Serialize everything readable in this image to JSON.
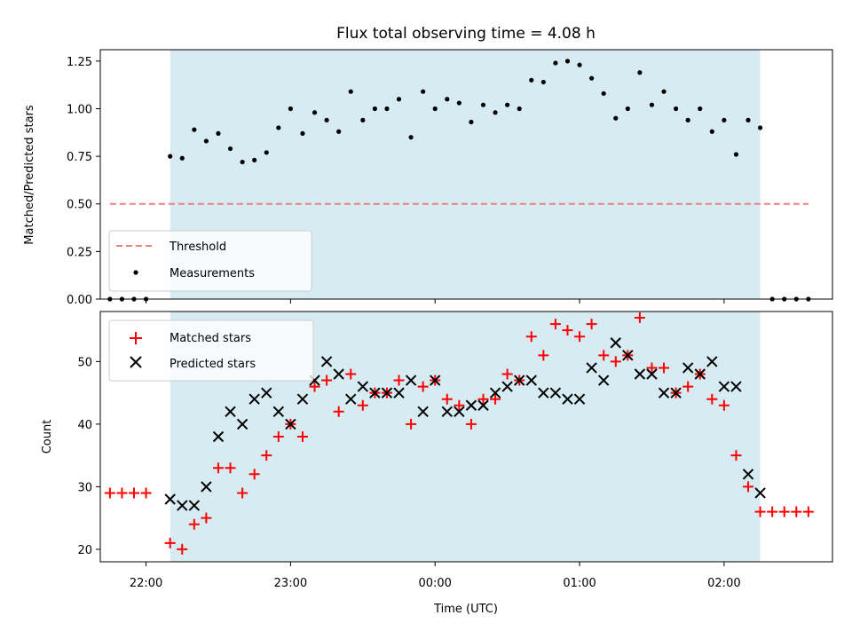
{
  "chart_data": [
    {
      "type": "scatter",
      "title": "Flux total observing time = 4.08 h",
      "xlabel": "",
      "ylabel": "Matched/Predicted stars",
      "ylim": [
        0,
        1.31
      ],
      "yticks": [
        "0.00",
        "0.25",
        "0.50",
        "0.75",
        "1.00",
        "1.25"
      ],
      "xlim": [
        "21:41",
        "02:45"
      ],
      "observing_window": [
        "22:10",
        "02:15"
      ],
      "grid": false,
      "legend_position": "lower-left",
      "threshold": {
        "name": "Threshold",
        "value": 0.5,
        "x": [
          "21:45",
          "02:35"
        ],
        "color": "#f08080"
      },
      "series": [
        {
          "name": "Measurements",
          "color": "#000000",
          "x": [
            "21:45",
            "21:50",
            "21:55",
            "22:00",
            "22:10",
            "22:15",
            "22:20",
            "22:25",
            "22:30",
            "22:35",
            "22:40",
            "22:45",
            "22:50",
            "22:55",
            "23:00",
            "23:05",
            "23:10",
            "23:15",
            "23:20",
            "23:25",
            "23:30",
            "23:35",
            "23:40",
            "23:45",
            "23:50",
            "23:55",
            "00:00",
            "00:05",
            "00:10",
            "00:15",
            "00:20",
            "00:25",
            "00:30",
            "00:35",
            "00:40",
            "00:45",
            "00:50",
            "00:55",
            "01:00",
            "01:05",
            "01:10",
            "01:15",
            "01:20",
            "01:25",
            "01:30",
            "01:35",
            "01:40",
            "01:45",
            "01:50",
            "01:55",
            "02:00",
            "02:05",
            "02:10",
            "02:15",
            "02:20",
            "02:25",
            "02:30",
            "02:35"
          ],
          "y": [
            0,
            0,
            0,
            0,
            0.75,
            0.74,
            0.89,
            0.83,
            0.87,
            0.79,
            0.72,
            0.73,
            0.77,
            0.9,
            1.0,
            0.87,
            0.98,
            0.94,
            0.88,
            1.09,
            0.94,
            1.0,
            1.0,
            1.05,
            0.85,
            1.09,
            1.0,
            1.05,
            1.03,
            0.93,
            1.02,
            0.98,
            1.02,
            1.0,
            1.15,
            1.14,
            1.24,
            1.25,
            1.23,
            1.16,
            1.08,
            0.95,
            1.0,
            1.19,
            1.02,
            1.09,
            1.0,
            0.94,
            1.0,
            0.88,
            0.94,
            0.76,
            0.94,
            0.9,
            0,
            0,
            0,
            0
          ]
        }
      ]
    },
    {
      "type": "scatter",
      "title": "",
      "xlabel": "Time (UTC)",
      "ylabel": "Count",
      "ylim": [
        18,
        58
      ],
      "yticks": [
        20,
        30,
        40,
        50
      ],
      "xlim": [
        "21:41",
        "02:45"
      ],
      "xticks": [
        "22:00",
        "23:00",
        "00:00",
        "01:00",
        "02:00"
      ],
      "observing_window": [
        "22:10",
        "02:15"
      ],
      "grid": false,
      "legend_position": "upper-left",
      "series": [
        {
          "name": "Matched stars",
          "marker": "plus",
          "color": "#ff0000",
          "x": [
            "21:45",
            "21:50",
            "21:55",
            "22:00",
            "22:10",
            "22:15",
            "22:20",
            "22:25",
            "22:30",
            "22:35",
            "22:40",
            "22:45",
            "22:50",
            "22:55",
            "23:00",
            "23:05",
            "23:10",
            "23:15",
            "23:20",
            "23:25",
            "23:30",
            "23:35",
            "23:40",
            "23:45",
            "23:50",
            "23:55",
            "00:00",
            "00:05",
            "00:10",
            "00:15",
            "00:20",
            "00:25",
            "00:30",
            "00:35",
            "00:40",
            "00:45",
            "00:50",
            "00:55",
            "01:00",
            "01:05",
            "01:10",
            "01:15",
            "01:20",
            "01:25",
            "01:30",
            "01:35",
            "01:40",
            "01:45",
            "01:50",
            "01:55",
            "02:00",
            "02:05",
            "02:10",
            "02:15",
            "02:20",
            "02:25",
            "02:30",
            "02:35"
          ],
          "y": [
            29,
            29,
            29,
            29,
            21,
            20,
            24,
            25,
            33,
            33,
            29,
            32,
            35,
            38,
            40,
            38,
            46,
            47,
            42,
            48,
            43,
            45,
            45,
            47,
            40,
            46,
            47,
            44,
            43,
            40,
            44,
            44,
            48,
            47,
            54,
            51,
            56,
            55,
            54,
            56,
            51,
            50,
            51,
            57,
            49,
            49,
            45,
            46,
            48,
            44,
            43,
            35,
            30,
            26,
            26,
            26,
            26,
            26
          ]
        },
        {
          "name": "Predicted stars",
          "marker": "x",
          "color": "#000000",
          "x": [
            "22:10",
            "22:15",
            "22:20",
            "22:25",
            "22:30",
            "22:35",
            "22:40",
            "22:45",
            "22:50",
            "22:55",
            "23:00",
            "23:05",
            "23:10",
            "23:15",
            "23:20",
            "23:25",
            "23:30",
            "23:35",
            "23:40",
            "23:45",
            "23:50",
            "23:55",
            "00:00",
            "00:05",
            "00:10",
            "00:15",
            "00:20",
            "00:25",
            "00:30",
            "00:35",
            "00:40",
            "00:45",
            "00:50",
            "00:55",
            "01:00",
            "01:05",
            "01:10",
            "01:15",
            "01:20",
            "01:25",
            "01:30",
            "01:35",
            "01:40",
            "01:45",
            "01:50",
            "01:55",
            "02:00",
            "02:05",
            "02:10",
            "02:15"
          ],
          "y": [
            28,
            27,
            27,
            30,
            38,
            42,
            40,
            44,
            45,
            42,
            40,
            44,
            47,
            50,
            48,
            44,
            46,
            45,
            45,
            45,
            47,
            42,
            47,
            42,
            42,
            43,
            43,
            45,
            46,
            47,
            47,
            45,
            45,
            44,
            44,
            49,
            47,
            53,
            51,
            48,
            48,
            45,
            45,
            49,
            48,
            50,
            46,
            46,
            32,
            29
          ]
        }
      ]
    }
  ]
}
